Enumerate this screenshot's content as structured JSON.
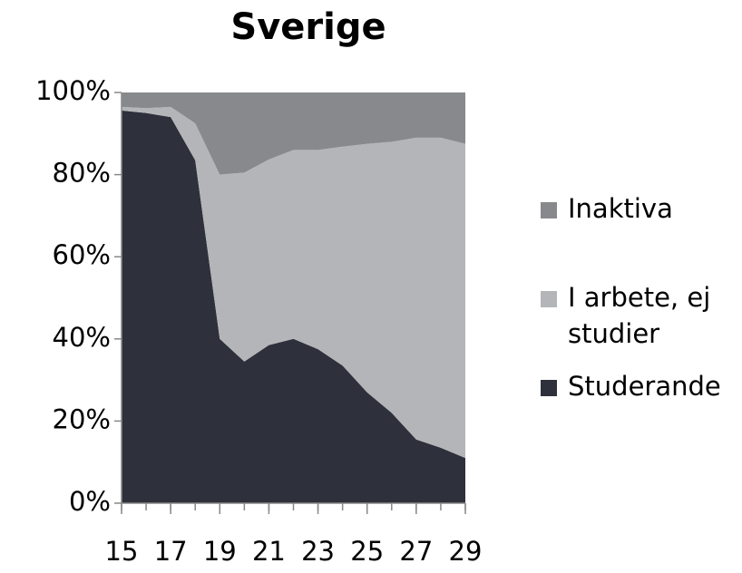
{
  "chart_data": {
    "type": "stacked_area",
    "title": "Sverige",
    "x": [
      15,
      16,
      17,
      18,
      19,
      20,
      21,
      22,
      23,
      24,
      25,
      26,
      27,
      28,
      29
    ],
    "xlim": [
      15,
      29
    ],
    "xticks": [
      15,
      17,
      19,
      21,
      23,
      25,
      27,
      29
    ],
    "ylim": [
      0,
      100
    ],
    "yticks": [
      {
        "value": 0,
        "label": "0%"
      },
      {
        "value": 20,
        "label": "20%"
      },
      {
        "value": 40,
        "label": "40%"
      },
      {
        "value": 60,
        "label": "60%"
      },
      {
        "value": 80,
        "label": "80%"
      },
      {
        "value": 100,
        "label": "100%"
      }
    ],
    "series": [
      {
        "name": "Studerande",
        "color": "#2e313b",
        "values": [
          95.6,
          95,
          94,
          83.5,
          40,
          34.5,
          38.5,
          40,
          37.5,
          33.5,
          27,
          22,
          15.5,
          13.5,
          11
        ]
      },
      {
        "name": "I arbete, ej studier",
        "color": "#b3b5b8",
        "values": [
          0.9,
          1.2,
          2.5,
          9,
          40,
          46,
          45.2,
          46,
          48.5,
          53.3,
          60.5,
          66,
          73.5,
          75.5,
          76.5
        ]
      },
      {
        "name": "Inaktiva",
        "color": "#87898c",
        "values": [
          3.5,
          3.8,
          3.5,
          7.5,
          20,
          19.5,
          16.3,
          14,
          14,
          13.2,
          12.5,
          12,
          11,
          11,
          12.5
        ]
      }
    ],
    "legend": "right"
  }
}
